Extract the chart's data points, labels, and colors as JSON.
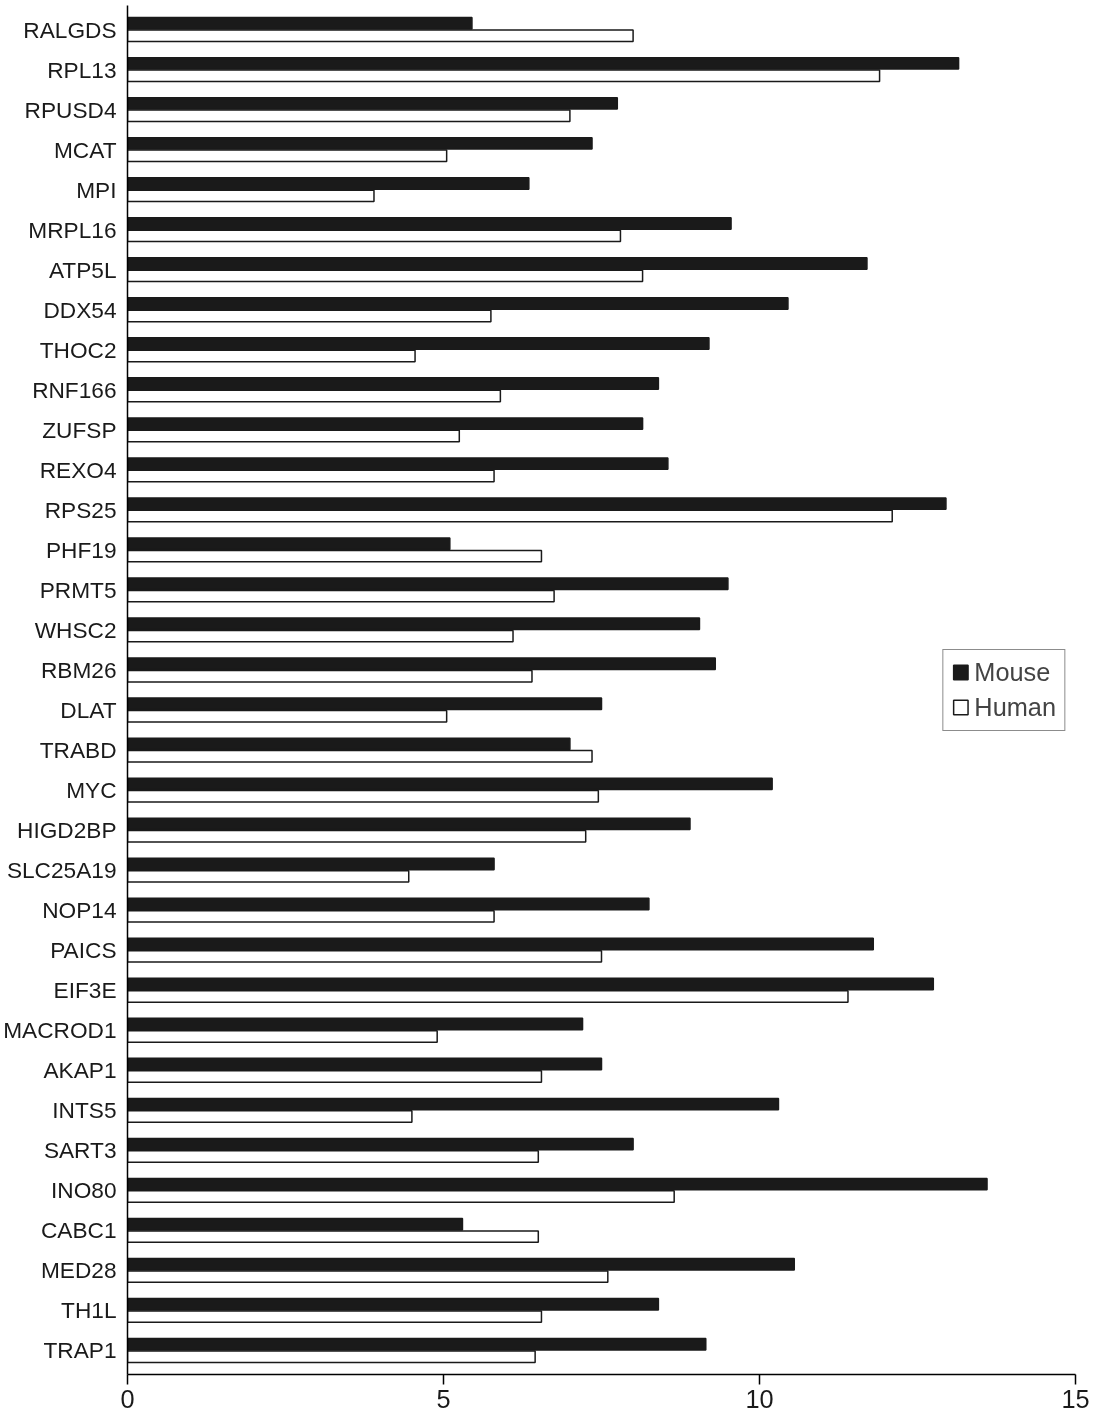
{
  "chart_data": {
    "type": "bar",
    "orientation": "horizontal",
    "categories": [
      "RALGDS",
      "RPL13",
      "RPUSD4",
      "MCAT",
      "MPI",
      "MRPL16",
      "ATP5L",
      "DDX54",
      "THOC2",
      "RNF166",
      "ZUFSP",
      "REXO4",
      "RPS25",
      "PHF19",
      "PRMT5",
      "WHSC2",
      "RBM26",
      "DLAT",
      "TRABD",
      "MYC",
      "HIGD2BP",
      "SLC25A19",
      "NOP14",
      "PAICS",
      "EIF3E",
      "MACROD1",
      "AKAP1",
      "INTS5",
      "SART3",
      "INO80",
      "CABC1",
      "MED28",
      "TH1L",
      "TRAP1"
    ],
    "series": [
      {
        "name": "Mouse",
        "color": "#1a1a1a",
        "values": [
          5.45,
          13.15,
          7.75,
          7.35,
          6.35,
          9.55,
          11.7,
          10.45,
          9.2,
          8.4,
          8.15,
          8.55,
          12.95,
          5.1,
          9.5,
          9.05,
          9.3,
          7.5,
          7.0,
          10.2,
          8.9,
          5.8,
          8.25,
          11.8,
          12.75,
          7.2,
          7.5,
          10.3,
          8.0,
          13.6,
          5.3,
          10.55,
          8.4,
          9.15
        ]
      },
      {
        "name": "Human",
        "color": "#ffffff",
        "values": [
          8.0,
          11.9,
          7.0,
          5.05,
          3.9,
          7.8,
          8.15,
          5.75,
          4.55,
          5.9,
          5.25,
          5.8,
          12.1,
          6.55,
          6.75,
          6.1,
          6.4,
          5.05,
          7.35,
          7.45,
          7.25,
          4.45,
          5.8,
          7.5,
          11.4,
          4.9,
          6.55,
          4.5,
          6.5,
          8.65,
          6.5,
          7.6,
          6.55,
          6.45
        ]
      }
    ],
    "xlim": [
      0,
      15
    ],
    "xticks": [
      0,
      5,
      10,
      15
    ],
    "grid": false,
    "legend": "right"
  }
}
